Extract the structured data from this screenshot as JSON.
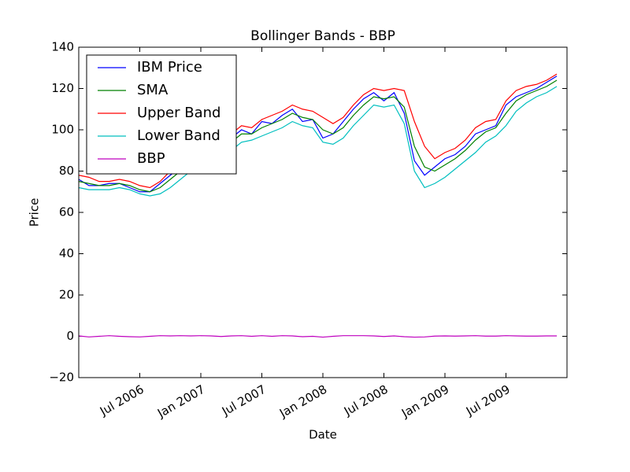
{
  "chart_data": {
    "type": "line",
    "title": "Bollinger Bands - BBP",
    "x_label": "Date",
    "y_label": "Price",
    "x": [
      "2006-01",
      "2006-02",
      "2006-03",
      "2006-04",
      "2006-05",
      "2006-06",
      "2006-07",
      "2006-08",
      "2006-09",
      "2006-10",
      "2006-11",
      "2006-12",
      "2007-01",
      "2007-02",
      "2007-03",
      "2007-04",
      "2007-05",
      "2007-06",
      "2007-07",
      "2007-08",
      "2007-09",
      "2007-10",
      "2007-11",
      "2007-12",
      "2008-01",
      "2008-02",
      "2008-03",
      "2008-04",
      "2008-05",
      "2008-06",
      "2008-07",
      "2008-08",
      "2008-09",
      "2008-10",
      "2008-11",
      "2008-12",
      "2009-01",
      "2009-02",
      "2009-03",
      "2009-04",
      "2009-05",
      "2009-06",
      "2009-07",
      "2009-08",
      "2009-09",
      "2009-10",
      "2009-11",
      "2009-12"
    ],
    "series": [
      {
        "name": "IBM Price",
        "color": "#0000ff",
        "values": [
          76,
          73,
          73,
          74,
          74,
          72,
          70,
          70,
          74,
          78,
          82,
          86,
          92,
          95,
          92,
          96,
          100,
          98,
          104,
          103,
          107,
          110,
          104,
          105,
          96,
          98,
          104,
          110,
          115,
          118,
          114,
          118,
          108,
          85,
          78,
          82,
          86,
          88,
          92,
          98,
          100,
          102,
          112,
          116,
          118,
          120,
          123,
          126
        ]
      },
      {
        "name": "SMA",
        "color": "#008000",
        "values": [
          75,
          74,
          73,
          73,
          74,
          73,
          71,
          70,
          72,
          76,
          80,
          84,
          89,
          93,
          93,
          94,
          98,
          98,
          101,
          103,
          105,
          108,
          106,
          105,
          100,
          98,
          101,
          107,
          112,
          116,
          115,
          116,
          111,
          92,
          82,
          80,
          83,
          86,
          90,
          95,
          99,
          101,
          108,
          114,
          117,
          119,
          121,
          124
        ]
      },
      {
        "name": "Upper Band",
        "color": "#ff0000",
        "values": [
          78,
          77,
          75,
          75,
          76,
          75,
          73,
          72,
          75,
          80,
          84,
          88,
          94,
          98,
          97,
          98,
          102,
          101,
          105,
          107,
          109,
          112,
          110,
          109,
          106,
          103,
          106,
          112,
          117,
          120,
          119,
          120,
          119,
          104,
          92,
          86,
          89,
          91,
          95,
          101,
          104,
          105,
          114,
          119,
          121,
          122,
          124,
          127
        ]
      },
      {
        "name": "Lower Band",
        "color": "#00bfbf",
        "values": [
          72,
          71,
          71,
          71,
          72,
          71,
          69,
          68,
          69,
          72,
          76,
          80,
          84,
          88,
          89,
          90,
          94,
          95,
          97,
          99,
          101,
          104,
          102,
          101,
          94,
          93,
          96,
          102,
          107,
          112,
          111,
          112,
          103,
          80,
          72,
          74,
          77,
          81,
          85,
          89,
          94,
          97,
          102,
          109,
          113,
          116,
          118,
          121
        ]
      },
      {
        "name": "BBP",
        "color": "#bf00bf",
        "values": [
          0.2,
          -0.3,
          0,
          0.3,
          0,
          -0.2,
          -0.3,
          0,
          0.3,
          0.2,
          0.3,
          0.2,
          0.3,
          0.2,
          -0.1,
          0.2,
          0.3,
          0,
          0.3,
          0,
          0.3,
          0.2,
          -0.2,
          0,
          -0.4,
          0,
          0.3,
          0.3,
          0.3,
          0.2,
          -0.1,
          0.2,
          -0.2,
          -0.4,
          -0.3,
          0.1,
          0.2,
          0.1,
          0.2,
          0.3,
          0.1,
          0.1,
          0.3,
          0.2,
          0.1,
          0.1,
          0.2,
          0.2
        ]
      }
    ],
    "xlim": [
      "2006-01",
      "2010-01"
    ],
    "xticks": [
      {
        "value": "2006-07",
        "label": "Jul 2006"
      },
      {
        "value": "2007-01",
        "label": "Jan 2007"
      },
      {
        "value": "2007-07",
        "label": "Jul 2007"
      },
      {
        "value": "2008-01",
        "label": "Jan 2008"
      },
      {
        "value": "2008-07",
        "label": "Jul 2008"
      },
      {
        "value": "2009-01",
        "label": "Jan 2009"
      },
      {
        "value": "2009-07",
        "label": "Jul 2009"
      }
    ],
    "ylim": [
      -20,
      140
    ],
    "yticks": [
      {
        "value": -20,
        "label": "−20"
      },
      0,
      20,
      40,
      60,
      80,
      100,
      120,
      140
    ],
    "legend": "upper left",
    "grid": false
  }
}
